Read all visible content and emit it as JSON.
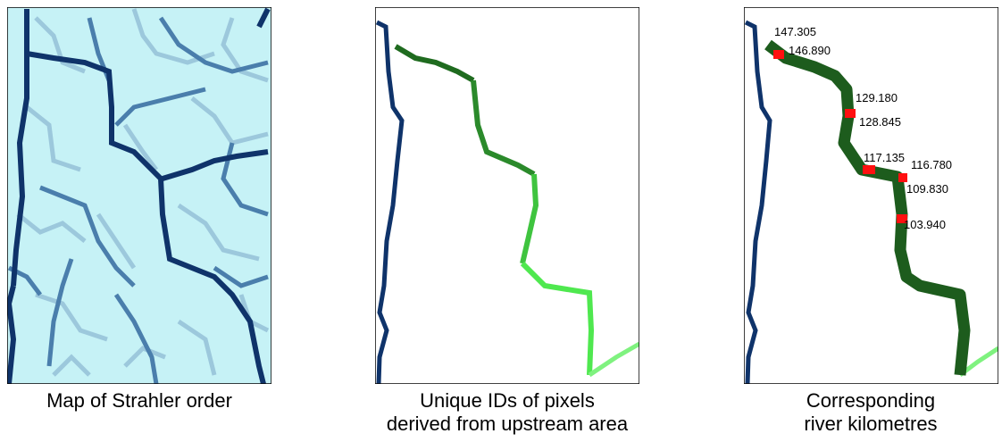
{
  "panels": [
    {
      "caption": [
        "Map of Strahler order"
      ]
    },
    {
      "caption": [
        "Unique IDs of pixels",
        "derived from upstream area"
      ]
    },
    {
      "caption": [
        "Corresponding",
        "river kilometres"
      ]
    }
  ],
  "river_km_labels": [
    "147.305",
    "146.890",
    "129.180",
    "128.845",
    "117.135",
    "116.780",
    "109.830",
    "103.940"
  ]
}
